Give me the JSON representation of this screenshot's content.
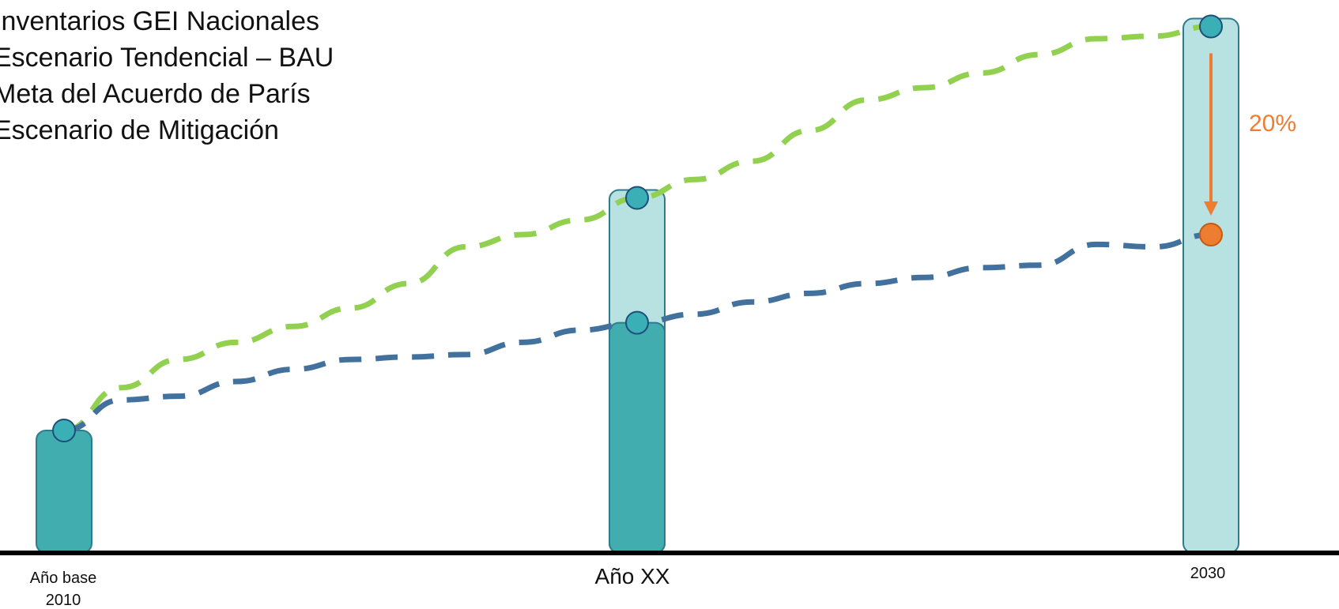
{
  "legend": {
    "items": [
      "Inventarios GEI Nacionales",
      "Escenario Tendencial – BAU",
      "Meta del Acuerdo de París",
      "Escenario de Mitigación"
    ]
  },
  "colors": {
    "inventory_bar": "#41ADAF",
    "projection_bar": "#B8E2E2",
    "bar_stroke": "#2E7C8A",
    "bau_line": "#92D050",
    "mitigation_line": "#41719C",
    "marker": "#3AAFB5",
    "marker_stroke": "#1F4E79",
    "target": "#ED7D31",
    "axis": "#000000"
  },
  "chart_data": {
    "type": "bar",
    "categories": [
      "Año base 2010",
      "Año XX",
      "2030"
    ],
    "tick_labels": {
      "base_line1": "Año base",
      "base_line2": "2010",
      "mid": "Año XX",
      "end": "2030"
    },
    "bars": {
      "inventory": [
        1.0,
        1.88,
        null
      ],
      "bau_projection": [
        null,
        2.9,
        4.3
      ]
    },
    "bau_series": [
      [
        0,
        1.0
      ],
      [
        0.05,
        1.35
      ],
      [
        0.1,
        1.58
      ],
      [
        0.15,
        1.72
      ],
      [
        0.2,
        1.85
      ],
      [
        0.25,
        2.0
      ],
      [
        0.3,
        2.2
      ],
      [
        0.35,
        2.5
      ],
      [
        0.4,
        2.6
      ],
      [
        0.45,
        2.72
      ],
      [
        0.5,
        2.9
      ],
      [
        0.55,
        3.05
      ],
      [
        0.6,
        3.2
      ],
      [
        0.65,
        3.45
      ],
      [
        0.7,
        3.7
      ],
      [
        0.75,
        3.8
      ],
      [
        0.8,
        3.92
      ],
      [
        0.85,
        4.07
      ],
      [
        0.9,
        4.2
      ],
      [
        0.95,
        4.22
      ],
      [
        1.0,
        4.3
      ]
    ],
    "mitigation_series": [
      [
        0,
        1.0
      ],
      [
        0.05,
        1.25
      ],
      [
        0.1,
        1.28
      ],
      [
        0.15,
        1.4
      ],
      [
        0.2,
        1.5
      ],
      [
        0.25,
        1.58
      ],
      [
        0.3,
        1.6
      ],
      [
        0.35,
        1.62
      ],
      [
        0.4,
        1.72
      ],
      [
        0.45,
        1.82
      ],
      [
        0.5,
        1.88
      ],
      [
        0.55,
        1.95
      ],
      [
        0.6,
        2.05
      ],
      [
        0.65,
        2.12
      ],
      [
        0.7,
        2.2
      ],
      [
        0.75,
        2.25
      ],
      [
        0.8,
        2.33
      ],
      [
        0.85,
        2.35
      ],
      [
        0.9,
        2.52
      ],
      [
        0.95,
        2.5
      ],
      [
        1.0,
        2.6
      ]
    ],
    "markers": {
      "base": 1.0,
      "mid_bau": 2.9,
      "mid_inventory": 1.88,
      "end_bau": 4.3,
      "end_target": 2.6
    },
    "reduction_label": "20%",
    "ylim": [
      0,
      4.4
    ],
    "grid": false,
    "legend_position": "top-left"
  }
}
